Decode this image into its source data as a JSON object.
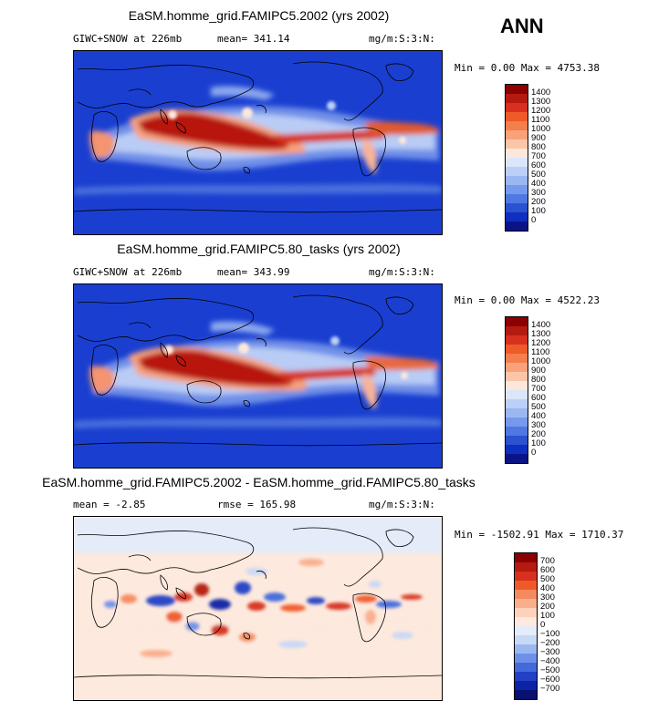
{
  "season": "ANN",
  "panels": [
    {
      "title": "EaSM.homme_grid.FAMIPC5.2002 (yrs 2002)",
      "left": "GIWC+SNOW at 226mb",
      "center": "mean= 341.14",
      "units": "mg/m:S:3:N:",
      "range": "Min =   0.00 Max = 4753.38",
      "colorbar_labels": [
        "1400",
        "1300",
        "1200",
        "1100",
        "1000",
        "900",
        "800",
        "700",
        "600",
        "500",
        "400",
        "300",
        "200",
        "100",
        "0"
      ]
    },
    {
      "title": "EaSM.homme_grid.FAMIPC5.80_tasks (yrs 2002)",
      "left": "GIWC+SNOW at 226mb",
      "center": "mean= 343.99",
      "units": "mg/m:S:3:N:",
      "range": "Min =   0.00 Max = 4522.23",
      "colorbar_labels": [
        "1400",
        "1300",
        "1200",
        "1100",
        "1000",
        "900",
        "800",
        "700",
        "600",
        "500",
        "400",
        "300",
        "200",
        "100",
        "0"
      ]
    },
    {
      "title": "EaSM.homme_grid.FAMIPC5.2002 - EaSM.homme_grid.FAMIPC5.80_tasks",
      "left": "mean =  -2.85",
      "center": "rmse = 165.98",
      "units": "mg/m:S:3:N:",
      "range": "Min = -1502.91 Max = 1710.37",
      "colorbar_labels": [
        "700",
        "600",
        "500",
        "400",
        "300",
        "200",
        "100",
        "0",
        "−100",
        "−200",
        "−300",
        "−400",
        "−500",
        "−600",
        "−700"
      ]
    }
  ],
  "chart_data": [
    {
      "type": "heatmap",
      "title": "EaSM.homme_grid.FAMIPC5.2002 (yrs 2002)",
      "variable": "GIWC+SNOW at 226mb",
      "units": "mg/m:S:3:N:",
      "mean": 341.14,
      "min": 0.0,
      "max": 4753.38,
      "contour_levels": [
        0,
        100,
        200,
        300,
        400,
        500,
        600,
        700,
        800,
        900,
        1000,
        1100,
        1200,
        1300,
        1400
      ],
      "colormap": "blue-white-red"
    },
    {
      "type": "heatmap",
      "title": "EaSM.homme_grid.FAMIPC5.80_tasks (yrs 2002)",
      "variable": "GIWC+SNOW at 226mb",
      "units": "mg/m:S:3:N:",
      "mean": 343.99,
      "min": 0.0,
      "max": 4522.23,
      "contour_levels": [
        0,
        100,
        200,
        300,
        400,
        500,
        600,
        700,
        800,
        900,
        1000,
        1100,
        1200,
        1300,
        1400
      ],
      "colormap": "blue-white-red"
    },
    {
      "type": "heatmap",
      "title": "EaSM.homme_grid.FAMIPC5.2002 - EaSM.homme_grid.FAMIPC5.80_tasks",
      "units": "mg/m:S:3:N:",
      "mean": -2.85,
      "rmse": 165.98,
      "min": -1502.91,
      "max": 1710.37,
      "contour_levels": [
        -700,
        -600,
        -500,
        -400,
        -300,
        -200,
        -100,
        0,
        100,
        200,
        300,
        400,
        500,
        600,
        700
      ],
      "colormap": "blue-white-red diverging"
    }
  ],
  "colors": {
    "top_scale": [
      "#8b0000",
      "#b41a10",
      "#d7301f",
      "#ef5a2a",
      "#f47e4c",
      "#f9a27a",
      "#fcc5a8",
      "#fde7dc",
      "#dbe6fb",
      "#bcd0f7",
      "#9ab7f2",
      "#7799ec",
      "#4f78e2",
      "#2b52cf",
      "#0e2fbf",
      "#0a1486"
    ],
    "diff_scale": [
      "#8b0000",
      "#b41a10",
      "#d7301f",
      "#ef5a2a",
      "#f48a5e",
      "#f9ae8c",
      "#fdd2bb",
      "#fde9dd",
      "#e3ecfb",
      "#c8d8f7",
      "#9ab7f2",
      "#6f90e9",
      "#4369dc",
      "#2140c6",
      "#0e22a6",
      "#081070"
    ]
  }
}
